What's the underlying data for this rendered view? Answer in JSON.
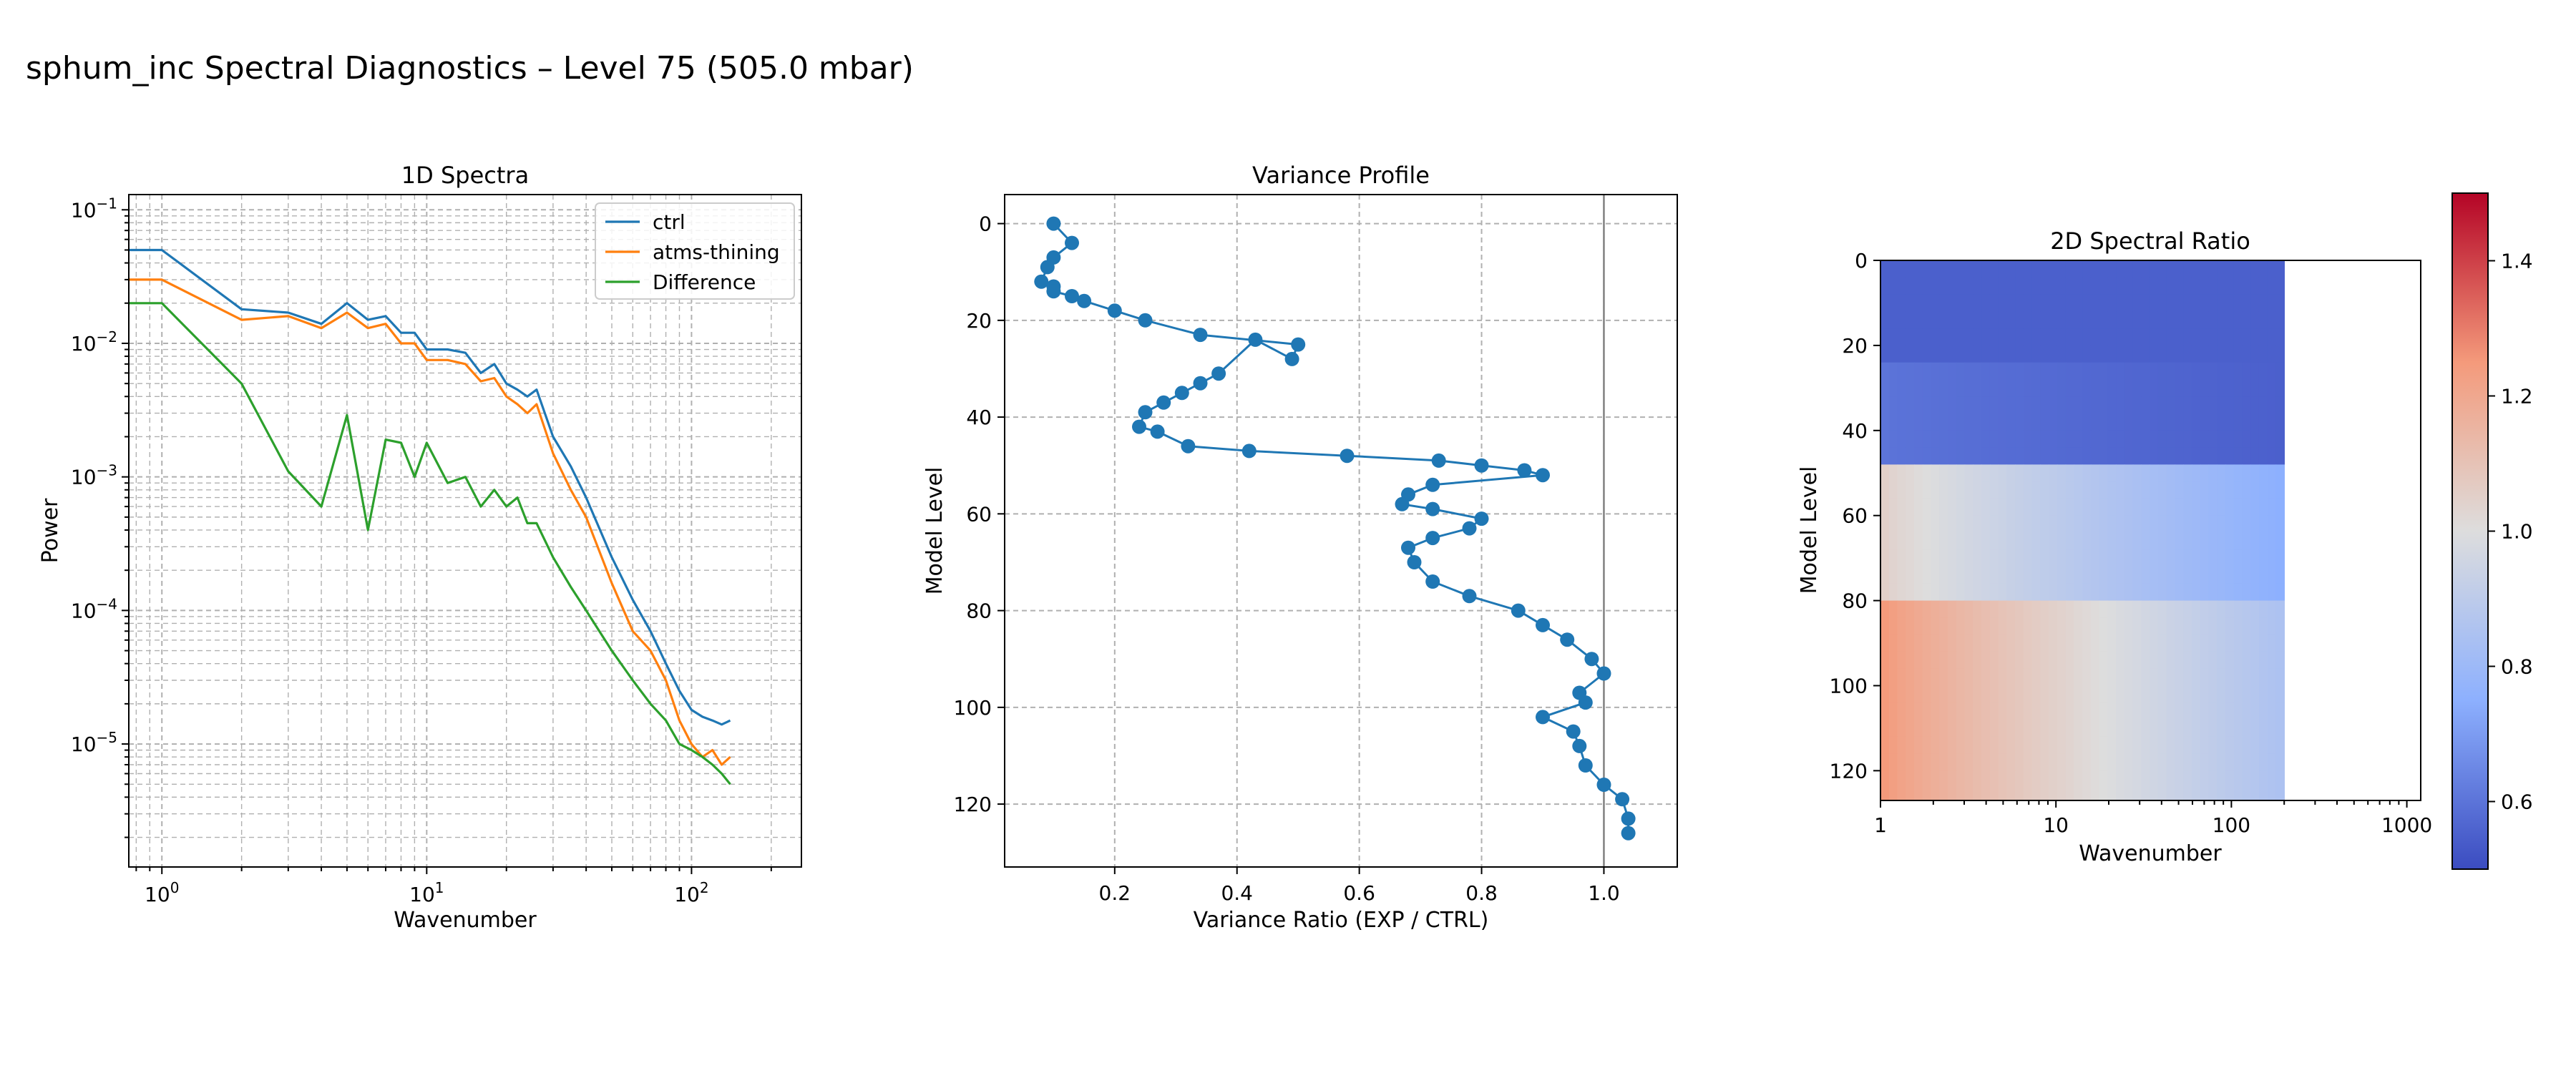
{
  "figure": {
    "suptitle": "sphum_inc Spectral Diagnostics – Level 75 (505.0 mbar)"
  },
  "chart_data": [
    {
      "type": "line",
      "title": "1D Spectra",
      "xlabel": "Wavenumber",
      "ylabel": "Power",
      "xscale": "log",
      "yscale": "log",
      "xlim": [
        0.75,
        260
      ],
      "ylim": [
        1.2e-06,
        0.13
      ],
      "xticks": [
        "10^0",
        "10^1",
        "10^2"
      ],
      "yticks": [
        "10^-5",
        "10^-4",
        "10^-3",
        "10^-2",
        "10^-1"
      ],
      "grid": true,
      "legend": "top-right",
      "x": [
        0,
        1,
        2,
        3,
        4,
        5,
        6,
        7,
        8,
        9,
        10,
        12,
        14,
        16,
        18,
        20,
        22,
        24,
        26,
        30,
        35,
        40,
        50,
        60,
        70,
        80,
        90,
        100,
        110,
        120,
        130,
        140
      ],
      "series": [
        {
          "name": "ctrl",
          "color": "#1f77b4",
          "values": [
            0.05,
            0.05,
            0.018,
            0.017,
            0.014,
            0.02,
            0.015,
            0.016,
            0.012,
            0.012,
            0.009,
            0.009,
            0.0085,
            0.006,
            0.007,
            0.005,
            0.0045,
            0.004,
            0.0045,
            0.002,
            0.0012,
            0.0007,
            0.00025,
            0.00012,
            7e-05,
            4e-05,
            2.5e-05,
            1.8e-05,
            1.6e-05,
            1.5e-05,
            1.4e-05,
            1.5e-05
          ]
        },
        {
          "name": "atms-thining",
          "color": "#ff7f0e",
          "values": [
            0.03,
            0.03,
            0.015,
            0.016,
            0.013,
            0.017,
            0.013,
            0.014,
            0.01,
            0.01,
            0.0075,
            0.0075,
            0.007,
            0.0052,
            0.0055,
            0.004,
            0.0035,
            0.003,
            0.0035,
            0.0015,
            0.0008,
            0.0005,
            0.00016,
            7e-05,
            5e-05,
            3e-05,
            1.5e-05,
            1e-05,
            8e-06,
            9e-06,
            7e-06,
            8e-06
          ]
        },
        {
          "name": "Difference",
          "color": "#2ca02c",
          "values": [
            0.02,
            0.02,
            0.005,
            0.0011,
            0.0006,
            0.0029,
            0.0004,
            0.0019,
            0.0018,
            0.001,
            0.0018,
            0.0009,
            0.001,
            0.0006,
            0.0008,
            0.0006,
            0.0007,
            0.00045,
            0.00045,
            0.00025,
            0.00015,
            0.0001,
            5e-05,
            3e-05,
            2e-05,
            1.5e-05,
            1e-05,
            9e-06,
            8e-06,
            7e-06,
            6e-06,
            5e-06
          ]
        }
      ]
    },
    {
      "type": "line",
      "title": "Variance Profile",
      "xlabel": "Variance Ratio (EXP / CTRL)",
      "ylabel": "Model Level",
      "xlim": [
        0.02,
        1.12
      ],
      "ylim": [
        133,
        -6
      ],
      "xticks": [
        0.2,
        0.4,
        0.6,
        0.8,
        1.0
      ],
      "yticks": [
        0,
        20,
        40,
        60,
        80,
        100,
        120
      ],
      "grid": true,
      "reference_line_x": 1.0,
      "color": "#1f77b4",
      "x": [
        0.1,
        0.13,
        0.1,
        0.09,
        0.08,
        0.1,
        0.1,
        0.13,
        0.15,
        0.2,
        0.25,
        0.34,
        0.5,
        0.49,
        0.43,
        0.37,
        0.34,
        0.31,
        0.28,
        0.25,
        0.24,
        0.27,
        0.32,
        0.42,
        0.58,
        0.73,
        0.8,
        0.87,
        0.9,
        0.72,
        0.68,
        0.67,
        0.72,
        0.8,
        0.78,
        0.72,
        0.68,
        0.69,
        0.72,
        0.78,
        0.86,
        0.9,
        0.94,
        0.98,
        1.0,
        0.96,
        0.97,
        0.9,
        0.95,
        0.96,
        0.97,
        1.0,
        1.03,
        1.04,
        1.04
      ],
      "y": [
        0,
        4,
        7,
        9,
        12,
        13,
        14,
        15,
        16,
        18,
        20,
        23,
        25,
        28,
        24,
        31,
        33,
        35,
        37,
        39,
        42,
        43,
        46,
        47,
        48,
        49,
        50,
        51,
        52,
        54,
        56,
        58,
        59,
        61,
        63,
        65,
        67,
        70,
        74,
        77,
        80,
        83,
        86,
        90,
        93,
        97,
        99,
        102,
        105,
        108,
        112,
        116,
        119,
        123,
        126
      ]
    },
    {
      "type": "heatmap",
      "title": "2D Spectral Ratio",
      "xlabel": "Wavenumber",
      "ylabel": "Model Level",
      "xscale": "log",
      "xlim": [
        1,
        1200
      ],
      "ylim": [
        127,
        0
      ],
      "xticks": [
        "1",
        "10",
        "100",
        "1000"
      ],
      "yticks": [
        0,
        20,
        40,
        60,
        80,
        100,
        120
      ],
      "colormap": "coolwarm",
      "colorbar": {
        "min": 0.5,
        "max": 1.5,
        "ticks": [
          "0.6",
          "0.8",
          "1.0",
          "1.2",
          "1.4"
        ]
      },
      "data_x_extent": [
        1,
        200
      ],
      "row_groups": [
        {
          "levels": "0-24",
          "ratio_low_k": 0.55,
          "ratio_high_k": 0.55
        },
        {
          "levels": "25-48",
          "ratio_low_k": 0.6,
          "ratio_high_k": 0.55
        },
        {
          "levels": "49-80",
          "ratio_low_k": 1.05,
          "ratio_high_k": 0.75
        },
        {
          "levels": "81-127",
          "ratio_low_k": 1.25,
          "ratio_high_k": 0.85
        }
      ]
    }
  ]
}
